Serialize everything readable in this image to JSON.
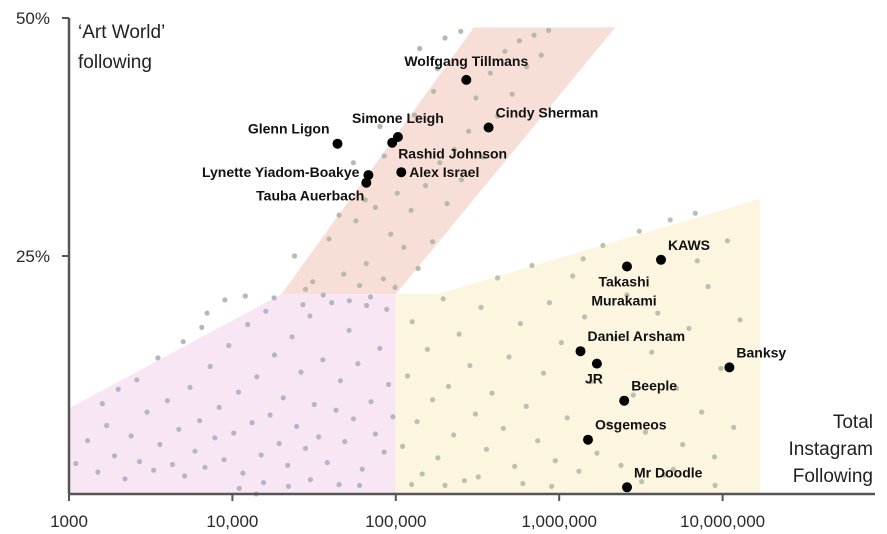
{
  "chart_data": {
    "type": "scatter",
    "x_scale": "log",
    "xlim": [
      1000,
      80000000
    ],
    "ylim": [
      0,
      50
    ],
    "y_axis_title_lines": [
      "‘Art World’",
      "following"
    ],
    "x_axis_title_lines": [
      "Total",
      "Instagram",
      "Following"
    ],
    "x_ticks": [
      {
        "value": 1000,
        "label": "1000"
      },
      {
        "value": 10000,
        "label": "10,000"
      },
      {
        "value": 100000,
        "label": "100,000"
      },
      {
        "value": 1000000,
        "label": "1,000,000"
      },
      {
        "value": 10000000,
        "label": "10,000,000"
      }
    ],
    "y_ticks": [
      {
        "value": 25,
        "label": "25%"
      },
      {
        "value": 50,
        "label": "50%"
      }
    ],
    "grid": false,
    "colors": {
      "axis": "#555555",
      "labeled_point": "#000000",
      "background_point_pink": "#b3b6c8",
      "background_point_yellow": "#b9c2ae",
      "background_point_red": "#b6b9ab",
      "region_red": "#f7ded6",
      "region_pink": "#f8e6f4",
      "region_yellow": "#fcf5e0"
    },
    "regions": [
      {
        "name": "red",
        "polygon": [
          [
            20000,
            21
          ],
          [
            300000,
            49
          ],
          [
            2200000,
            49
          ],
          [
            100000,
            21
          ]
        ]
      },
      {
        "name": "pink",
        "polygon": [
          [
            1000,
            9
          ],
          [
            20000,
            21
          ],
          [
            100000,
            21
          ],
          [
            100000,
            0
          ],
          [
            1000,
            0
          ]
        ]
      },
      {
        "name": "yellow",
        "polygon": [
          [
            100000,
            0
          ],
          [
            100000,
            21
          ],
          [
            180000,
            21
          ],
          [
            17000000,
            31
          ],
          [
            17000000,
            0
          ]
        ]
      }
    ],
    "labeled_points": [
      {
        "name": "Wolfgang Tillmans",
        "x": 270000,
        "y": 43.5,
        "label_pos": "above"
      },
      {
        "name": "Cindy Sherman",
        "x": 370000,
        "y": 38.5,
        "label_pos": "right-up"
      },
      {
        "name": "Simone Leigh",
        "x": 103000,
        "y": 37.5,
        "label_pos": "above"
      },
      {
        "name": "Glenn Ligon",
        "x": 44000,
        "y": 36.8,
        "label_pos": "left-up"
      },
      {
        "name": "Rashid Johnson",
        "x": 95000,
        "y": 36.9,
        "label_pos": "right-down"
      },
      {
        "name": "Lynette Yiadom-Boakye",
        "x": 68000,
        "y": 33.5,
        "label_pos": "left"
      },
      {
        "name": "Alex Israel",
        "x": 108000,
        "y": 33.8,
        "label_pos": "right"
      },
      {
        "name": "Tauba Auerbach",
        "x": 66000,
        "y": 32.7,
        "label_pos": "left-down"
      },
      {
        "name": "KAWS",
        "x": 4200000,
        "y": 24.6,
        "label_pos": "right-up"
      },
      {
        "name": "Takashi Murakami",
        "x": 2600000,
        "y": 23.9,
        "label_pos": "below"
      },
      {
        "name": "Daniel Arsham",
        "x": 1350000,
        "y": 15.0,
        "label_pos": "right-up"
      },
      {
        "name": "Banksy",
        "x": 11000000,
        "y": 13.3,
        "label_pos": "right-up"
      },
      {
        "name": "JR",
        "x": 1700000,
        "y": 13.7,
        "label_pos": "below"
      },
      {
        "name": "Beeple",
        "x": 2500000,
        "y": 9.8,
        "label_pos": "right-up"
      },
      {
        "name": "Osgemeos",
        "x": 1500000,
        "y": 5.7,
        "label_pos": "right-up"
      },
      {
        "name": "Mr Doodle",
        "x": 2600000,
        "y": 0.7,
        "label_pos": "right-up"
      }
    ],
    "background_points": {
      "pink": [
        [
          1100,
          3.2
        ],
        [
          1300,
          5.6
        ],
        [
          1500,
          2.3
        ],
        [
          1700,
          7.2
        ],
        [
          1900,
          4.0
        ],
        [
          2200,
          1.6
        ],
        [
          2400,
          6.1
        ],
        [
          2700,
          3.4
        ],
        [
          3000,
          8.6
        ],
        [
          3300,
          2.5
        ],
        [
          3600,
          5.2
        ],
        [
          4000,
          9.8
        ],
        [
          4300,
          3.1
        ],
        [
          4700,
          6.8
        ],
        [
          5100,
          1.9
        ],
        [
          5500,
          11.2
        ],
        [
          5900,
          4.5
        ],
        [
          6300,
          7.7
        ],
        [
          6800,
          2.8
        ],
        [
          7300,
          13.4
        ],
        [
          7800,
          5.9
        ],
        [
          8300,
          9.1
        ],
        [
          8900,
          3.6
        ],
        [
          9500,
          15.6
        ],
        [
          10200,
          6.4
        ],
        [
          10900,
          10.7
        ],
        [
          11600,
          2.2
        ],
        [
          12400,
          17.8
        ],
        [
          13200,
          7.5
        ],
        [
          14100,
          12.3
        ],
        [
          15000,
          4.1
        ],
        [
          16000,
          19.2
        ],
        [
          17000,
          8.3
        ],
        [
          18100,
          14.6
        ],
        [
          19300,
          5.3
        ],
        [
          20500,
          10.1
        ],
        [
          21800,
          3.0
        ],
        [
          23200,
          16.5
        ],
        [
          24700,
          7.1
        ],
        [
          26300,
          12.8
        ],
        [
          28000,
          4.8
        ],
        [
          29800,
          18.7
        ],
        [
          31700,
          9.4
        ],
        [
          33700,
          6.0
        ],
        [
          35800,
          14.1
        ],
        [
          38100,
          3.3
        ],
        [
          40500,
          20.1
        ],
        [
          43100,
          8.8
        ],
        [
          45800,
          11.9
        ],
        [
          48700,
          5.5
        ],
        [
          51800,
          17.2
        ],
        [
          55100,
          7.9
        ],
        [
          58600,
          13.7
        ],
        [
          62300,
          2.6
        ],
        [
          66300,
          19.8
        ],
        [
          70500,
          9.7
        ],
        [
          75000,
          6.3
        ],
        [
          79800,
          15.3
        ],
        [
          84900,
          4.4
        ],
        [
          90300,
          11.5
        ],
        [
          96000,
          8.1
        ],
        [
          2600,
          12.0
        ],
        [
          3500,
          14.3
        ],
        [
          5000,
          16.0
        ],
        [
          6500,
          17.5
        ],
        [
          9000,
          20.4
        ],
        [
          12000,
          20.8
        ],
        [
          15500,
          1.2
        ],
        [
          22000,
          0.8
        ],
        [
          30000,
          1.5
        ],
        [
          45000,
          1.0
        ],
        [
          60000,
          0.9
        ],
        [
          1600,
          9.5
        ],
        [
          2000,
          11.0
        ],
        [
          7000,
          19.0
        ],
        [
          11000,
          0.6
        ],
        [
          18000,
          20.6
        ],
        [
          27000,
          19.9
        ],
        [
          36000,
          20.9
        ],
        [
          52000,
          20.3
        ],
        [
          70000,
          20.7
        ],
        [
          88000,
          19.4
        ]
      ],
      "yellow": [
        [
          110000,
          5.0
        ],
        [
          118000,
          12.4
        ],
        [
          126000,
          18.1
        ],
        [
          135000,
          7.6
        ],
        [
          145000,
          2.1
        ],
        [
          156000,
          15.2
        ],
        [
          168000,
          9.9
        ],
        [
          181000,
          3.8
        ],
        [
          195000,
          20.5
        ],
        [
          210000,
          11.3
        ],
        [
          226000,
          6.2
        ],
        [
          244000,
          16.8
        ],
        [
          263000,
          1.4
        ],
        [
          284000,
          13.5
        ],
        [
          307000,
          8.4
        ],
        [
          332000,
          19.6
        ],
        [
          359000,
          4.7
        ],
        [
          388000,
          10.6
        ],
        [
          420000,
          22.7
        ],
        [
          455000,
          6.9
        ],
        [
          493000,
          14.4
        ],
        [
          534000,
          2.9
        ],
        [
          579000,
          17.9
        ],
        [
          628000,
          9.2
        ],
        [
          681000,
          24.0
        ],
        [
          739000,
          5.6
        ],
        [
          802000,
          12.7
        ],
        [
          871000,
          20.1
        ],
        [
          946000,
          3.5
        ],
        [
          1030000,
          15.9
        ],
        [
          1120000,
          8.0
        ],
        [
          1210000,
          22.9
        ],
        [
          1320000,
          2.4
        ],
        [
          1430000,
          18.6
        ],
        [
          1560000,
          11.8
        ],
        [
          1700000,
          4.3
        ],
        [
          1850000,
          26.1
        ],
        [
          2010000,
          7.4
        ],
        [
          2190000,
          16.3
        ],
        [
          2390000,
          3.0
        ],
        [
          2600000,
          20.9
        ],
        [
          2840000,
          10.4
        ],
        [
          3090000,
          27.6
        ],
        [
          3370000,
          6.5
        ],
        [
          3680000,
          14.9
        ],
        [
          4010000,
          19.0
        ],
        [
          4380000,
          2.0
        ],
        [
          4780000,
          28.8
        ],
        [
          5220000,
          11.1
        ],
        [
          5700000,
          5.2
        ],
        [
          6230000,
          17.4
        ],
        [
          6810000,
          29.5
        ],
        [
          7450000,
          8.6
        ],
        [
          8150000,
          21.8
        ],
        [
          8920000,
          3.9
        ],
        [
          9770000,
          13.2
        ],
        [
          10700000,
          26.6
        ],
        [
          11700000,
          7.0
        ],
        [
          12800000,
          18.3
        ],
        [
          14000,
          0
        ],
        [
          125000,
          1.0
        ],
        [
          200000,
          0.9
        ],
        [
          320000,
          1.8
        ],
        [
          600000,
          1.1
        ],
        [
          900000,
          0.8
        ],
        [
          1400000,
          24.7
        ],
        [
          3200000,
          1.3
        ],
        [
          5000000,
          2.6
        ],
        [
          7000000,
          24.5
        ],
        [
          9000000,
          0.9
        ]
      ],
      "red": [
        [
          24000,
          25.0
        ],
        [
          31000,
          22.3
        ],
        [
          39000,
          26.8
        ],
        [
          48000,
          23.1
        ],
        [
          57000,
          28.7
        ],
        [
          66000,
          24.2
        ],
        [
          75000,
          30.1
        ],
        [
          84000,
          22.6
        ],
        [
          93000,
          27.3
        ],
        [
          102000,
          31.6
        ],
        [
          112000,
          25.9
        ],
        [
          124000,
          29.8
        ],
        [
          137000,
          23.7
        ],
        [
          152000,
          32.4
        ],
        [
          168000,
          26.5
        ],
        [
          186000,
          34.8
        ],
        [
          206000,
          30.5
        ],
        [
          228000,
          36.2
        ],
        [
          252000,
          33.0
        ],
        [
          279000,
          38.1
        ],
        [
          309000,
          41.6
        ],
        [
          342000,
          35.4
        ],
        [
          379000,
          44.2
        ],
        [
          420000,
          39.7
        ],
        [
          465000,
          46.5
        ],
        [
          515000,
          42.0
        ],
        [
          571000,
          47.6
        ],
        [
          633000,
          44.9
        ],
        [
          701000,
          48.2
        ],
        [
          777000,
          46.1
        ],
        [
          861000,
          48.7
        ],
        [
          55000,
          34.8
        ],
        [
          85000,
          35.5
        ],
        [
          130000,
          39.8
        ],
        [
          170000,
          42.3
        ],
        [
          60000,
          21.9
        ],
        [
          28000,
          21.5
        ],
        [
          99000,
          21.7
        ],
        [
          140000,
          46.8
        ],
        [
          180000,
          44.7
        ],
        [
          80000,
          38.6
        ],
        [
          200000,
          47.9
        ],
        [
          250000,
          48.6
        ],
        [
          65000,
          30.9
        ],
        [
          45000,
          29.3
        ]
      ]
    }
  }
}
